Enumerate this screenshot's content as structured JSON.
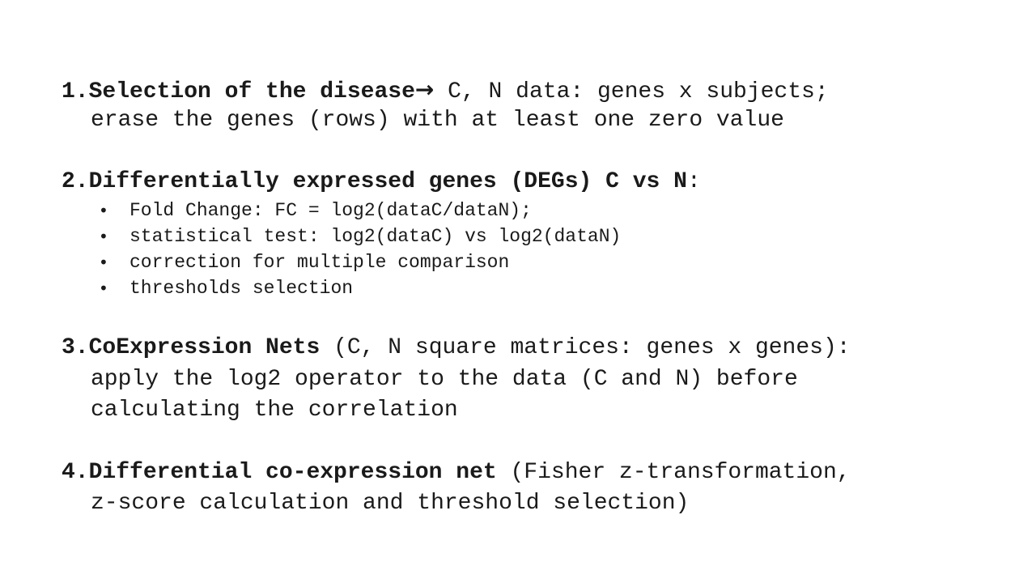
{
  "item1": {
    "number": "1.",
    "heading": "Selection of the disease",
    "arrow": "→",
    "line1_rest": " C, N data: genes x subjects;",
    "line2": "erase the genes (rows) with at least one zero value"
  },
  "item2": {
    "number": "2.",
    "heading": "Differentially expressed genes (DEGs) C vs N",
    "colon": ":",
    "bullet_glyph": "•",
    "bullets": [
      "Fold Change: FC = log2(dataC/dataN);",
      "statistical test: log2(dataC) vs log2(dataN)",
      "correction for multiple comparison",
      "thresholds selection"
    ]
  },
  "item3": {
    "number": "3.",
    "heading": "CoExpression Nets",
    "line1_rest": " (C, N square matrices: genes x genes):",
    "line2": "apply the log2 operator to the data (C and N) before",
    "line3": "calculating the correlation"
  },
  "item4": {
    "number": "4.",
    "heading": "Differential co-expression net",
    "line1_rest": " (Fisher z-transformation,",
    "line2": "z-score calculation and threshold selection)"
  }
}
